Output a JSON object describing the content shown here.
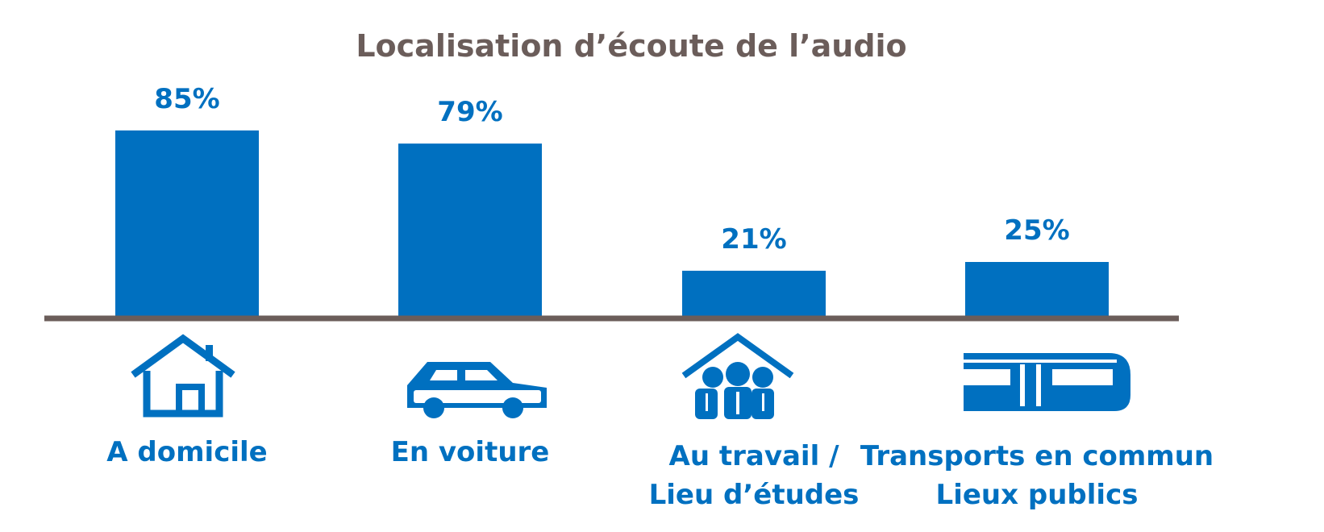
{
  "chart_data": {
    "type": "bar",
    "title": "Localisation d’écoute de l’audio",
    "categories": [
      {
        "lines": [
          "A domicile"
        ],
        "icon": "house-icon"
      },
      {
        "lines": [
          "En voiture"
        ],
        "icon": "car-icon"
      },
      {
        "lines": [
          "Au travail /",
          "Lieu d’études"
        ],
        "icon": "office-workers-icon"
      },
      {
        "lines": [
          "Transports en commun",
          "Lieux publics"
        ],
        "icon": "tram-icon"
      }
    ],
    "values": [
      85,
      79,
      21,
      25
    ],
    "value_labels": [
      "85%",
      "79%",
      "21%",
      "25%"
    ],
    "unit": "%",
    "ylim": [
      0,
      100
    ],
    "grid": false,
    "legend": "none",
    "colors": {
      "bar": "#0070c0",
      "title": "#6b5d5a",
      "axis": "#6b5d5a",
      "labels": "#0070c0"
    }
  }
}
